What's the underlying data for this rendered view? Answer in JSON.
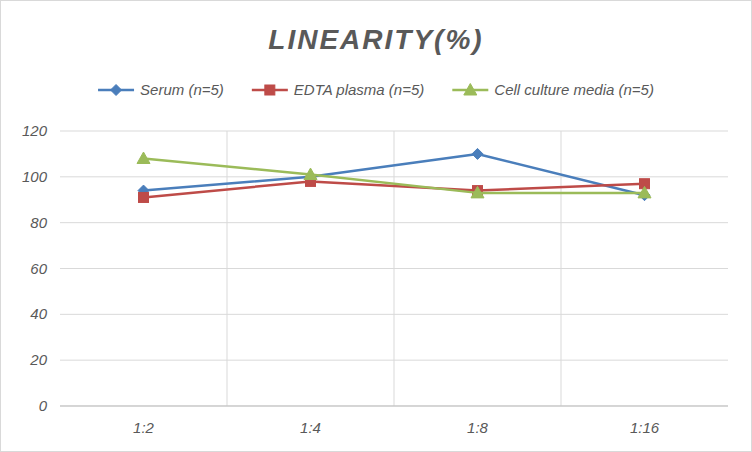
{
  "chart_data": {
    "type": "line",
    "title": "LINEARITY(%)",
    "categories": [
      "1:2",
      "1:4",
      "1:8",
      "1:16"
    ],
    "series": [
      {
        "name": "Serum (n=5)",
        "color": "#4a7ebb",
        "marker": "diamond",
        "values": [
          94,
          100,
          110,
          92
        ]
      },
      {
        "name": "EDTA plasma (n=5)",
        "color": "#be4b48",
        "marker": "square",
        "values": [
          91,
          98,
          94,
          97
        ]
      },
      {
        "name": "Cell culture media (n=5)",
        "color": "#9bbb59",
        "marker": "triangle",
        "values": [
          108,
          101,
          93,
          93
        ]
      }
    ],
    "ylim": [
      0,
      120
    ],
    "yticks": [
      0,
      20,
      40,
      60,
      80,
      100,
      120
    ],
    "grid": true,
    "legend": "top"
  }
}
